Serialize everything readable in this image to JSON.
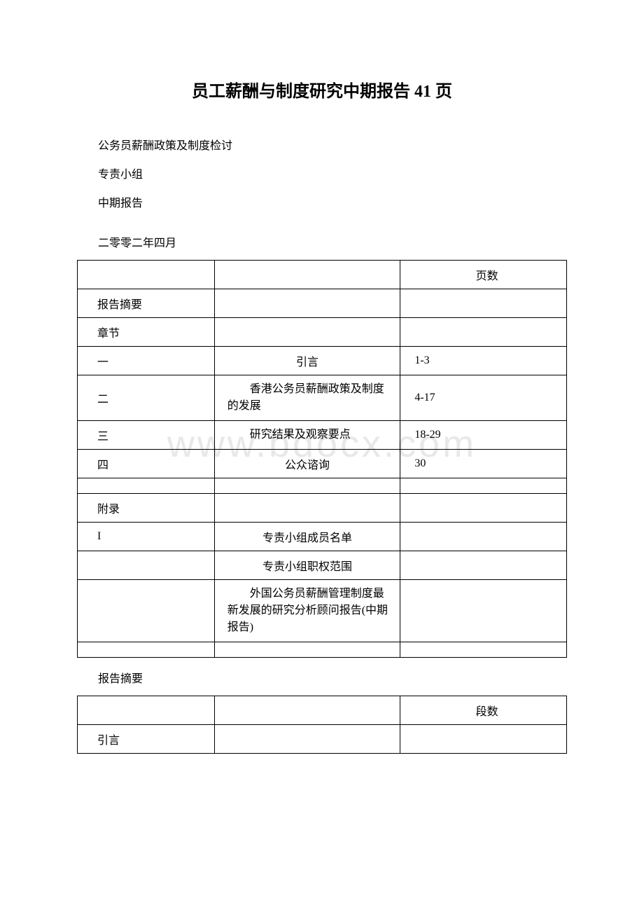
{
  "title": "员工薪酬与制度研究中期报告 41 页",
  "intro": {
    "line1": "公务员薪酬政策及制度检讨",
    "line2": "专责小组",
    "line3": "中期报告"
  },
  "date": "二零零二年四月",
  "watermark": "www.bdocx.com",
  "toc": {
    "header_col3": "页数",
    "rows": [
      {
        "c1": "报告摘要",
        "c2": "",
        "c3": ""
      },
      {
        "c1": "章节",
        "c2": "",
        "c3": ""
      },
      {
        "c1": "一",
        "c2": "引言",
        "c3": "1-3",
        "c2style": "center"
      },
      {
        "c1": "二",
        "c2": "香港公务员薪酬政策及制度的发展",
        "c3": "4-17",
        "c2style": "multi"
      },
      {
        "c1": "三",
        "c2": "研究结果及观察要点",
        "c3": "18-29",
        "c2style": "multi"
      },
      {
        "c1": "四",
        "c2": "公众谘询",
        "c3": "30",
        "c2style": "center"
      }
    ],
    "thin_row": {
      "c1": "",
      "c2": "",
      "c3": ""
    },
    "appendix_rows": [
      {
        "c1": "附录",
        "c2": "",
        "c3": ""
      },
      {
        "c1": "I",
        "c2": "专责小组成员名单",
        "c3": "",
        "c2style": "center"
      },
      {
        "c1": "",
        "c2": "专责小组职权范围",
        "c3": "",
        "c2style": "center"
      },
      {
        "c1": "",
        "c2": "外国公务员薪酬管理制度最新发展的研究分析顾问报告(中期报告)",
        "c3": "",
        "c2style": "multi-long"
      }
    ],
    "thin_row2": {
      "c1": "",
      "c2": "",
      "c3": ""
    }
  },
  "summary_title": "报告摘要",
  "summary_table": {
    "header_col3": "段数",
    "rows": [
      {
        "c1": "引言",
        "c2": "",
        "c3": ""
      }
    ]
  },
  "colors": {
    "background": "#ffffff",
    "text": "#000000",
    "border": "#000000",
    "watermark": "#e8e8e8"
  }
}
